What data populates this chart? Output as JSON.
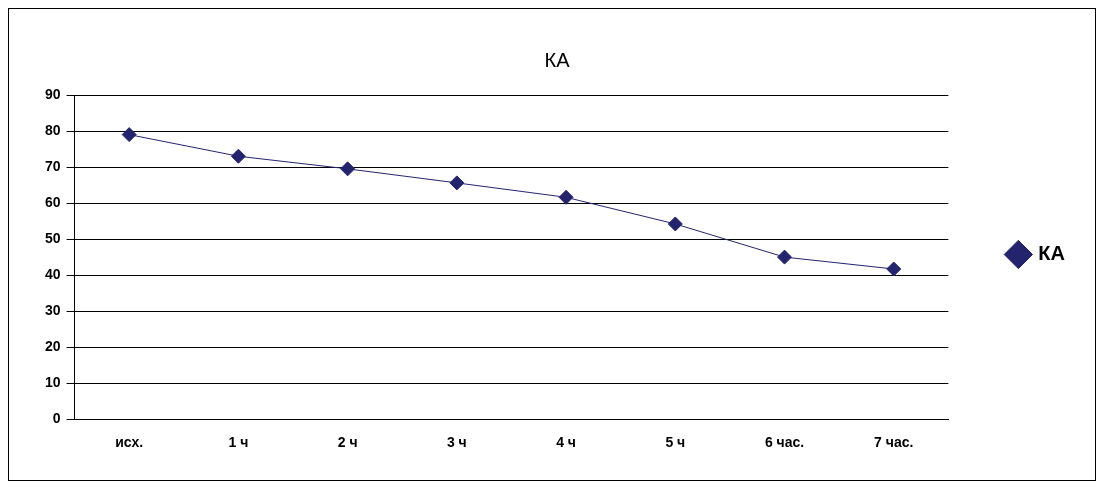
{
  "chart_data": {
    "type": "line",
    "title": "КА",
    "categories": [
      "исх.",
      "1 ч",
      "2 ч",
      "3 ч",
      "4 ч",
      "5 ч",
      "6 час.",
      "7 час."
    ],
    "series": [
      {
        "name": "КА",
        "color": "#24246e",
        "values": [
          79.0,
          73.0,
          69.5,
          65.6,
          61.6,
          54.2,
          45.0,
          41.7
        ]
      }
    ],
    "ylim": [
      0,
      90
    ],
    "yticks": [
      0,
      10,
      20,
      30,
      40,
      50,
      60,
      70,
      80,
      90
    ],
    "grid": "y",
    "legend": "right",
    "marker": "diamond",
    "line_style": "solid"
  }
}
